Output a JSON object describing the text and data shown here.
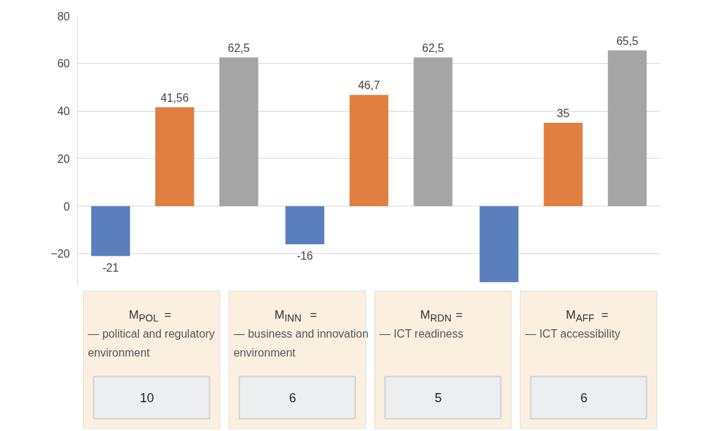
{
  "chart_data": [
    {
      "type": "bar",
      "categories": [
        null,
        null,
        null
      ],
      "ylim": [
        -33,
        80
      ],
      "yticks": [
        -20,
        0,
        20,
        40,
        60,
        80
      ],
      "grid": "y",
      "series": [
        {
          "color": "#5a7fbc",
          "values": [
            -21,
            -16,
            -32
          ],
          "value_labels": [
            "-21",
            "-16",
            null
          ]
        },
        {
          "color": "#e07f3f",
          "values": [
            41.56,
            46.7,
            35
          ],
          "value_labels": [
            "41,56",
            "46,7",
            "35"
          ]
        },
        {
          "color": "#a5a5a5",
          "values": [
            62.5,
            62.5,
            65.5
          ],
          "value_labels": [
            "62,5",
            "62,5",
            "65,5"
          ]
        }
      ]
    },
    {
      "type": "other",
      "categories": [
        "M$_{POL}$ =",
        "M$_{INN}$ =",
        "M$_{RDN}$ =",
        "M$_{AFF}$ ="
      ],
      "annotations": [
        "— political and regulatory\nenvironment",
        "— business and innovation\nenvironment",
        "— ICT readiness",
        "— ICT accessibility"
      ],
      "value_labels": [
        "10",
        "6",
        "5",
        "6"
      ]
    }
  ]
}
